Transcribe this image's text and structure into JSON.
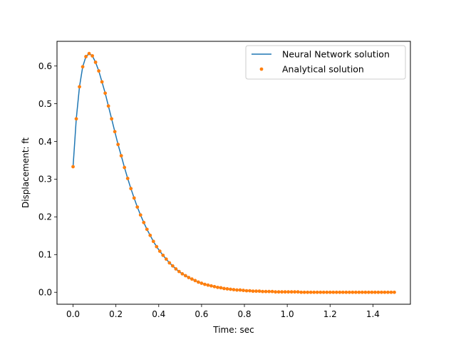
{
  "chart_data": {
    "type": "line",
    "title": "",
    "xlabel": "Time: sec",
    "ylabel": "Displacement: ft",
    "xlim": [
      -0.075,
      1.575
    ],
    "ylim": [
      -0.0317,
      0.6655
    ],
    "xticks": [
      0.0,
      0.2,
      0.4,
      0.6,
      0.8,
      1.0,
      1.2,
      1.4
    ],
    "xtick_labels": [
      "0.0",
      "0.2",
      "0.4",
      "0.6",
      "0.8",
      "1.0",
      "1.2",
      "1.4"
    ],
    "yticks": [
      0.0,
      0.1,
      0.2,
      0.3,
      0.4,
      0.5,
      0.6
    ],
    "ytick_labels": [
      "0.0",
      "0.1",
      "0.2",
      "0.3",
      "0.4",
      "0.5",
      "0.6"
    ],
    "grid": false,
    "legend_position": "top-right",
    "series": [
      {
        "name": "Neural Network solution",
        "style": "line",
        "color": "#1f77b4",
        "x": [
          0.0,
          0.015,
          0.03,
          0.045,
          0.06,
          0.075,
          0.09,
          0.105,
          0.12,
          0.135,
          0.15,
          0.165,
          0.18,
          0.195,
          0.21,
          0.225,
          0.24,
          0.255,
          0.27,
          0.285,
          0.3,
          0.315,
          0.33,
          0.345,
          0.36,
          0.375,
          0.39,
          0.405,
          0.42,
          0.435,
          0.45,
          0.465,
          0.48,
          0.495,
          0.51,
          0.525,
          0.54,
          0.555,
          0.57,
          0.585,
          0.6,
          0.615,
          0.63,
          0.645,
          0.66,
          0.675,
          0.69,
          0.705,
          0.72,
          0.735,
          0.75,
          0.765,
          0.78,
          0.795,
          0.81,
          0.825,
          0.84,
          0.855,
          0.87,
          0.885,
          0.9,
          0.915,
          0.93,
          0.945,
          0.96,
          0.975,
          0.99,
          1.005,
          1.02,
          1.035,
          1.05,
          1.065,
          1.08,
          1.095,
          1.11,
          1.125,
          1.14,
          1.155,
          1.17,
          1.185,
          1.2,
          1.215,
          1.23,
          1.245,
          1.26,
          1.275,
          1.29,
          1.305,
          1.32,
          1.335,
          1.35,
          1.365,
          1.38,
          1.395,
          1.41,
          1.425,
          1.44,
          1.455,
          1.47,
          1.485,
          1.5
        ],
        "y": [
          0.333,
          0.46,
          0.545,
          0.598,
          0.625,
          0.633,
          0.627,
          0.61,
          0.587,
          0.558,
          0.528,
          0.494,
          0.46,
          0.426,
          0.392,
          0.362,
          0.331,
          0.302,
          0.275,
          0.25,
          0.226,
          0.205,
          0.185,
          0.167,
          0.151,
          0.135,
          0.121,
          0.109,
          0.098,
          0.088,
          0.078,
          0.07,
          0.062,
          0.055,
          0.049,
          0.044,
          0.039,
          0.035,
          0.031,
          0.027,
          0.024,
          0.021,
          0.019,
          0.017,
          0.015,
          0.013,
          0.012,
          0.01,
          0.009,
          0.008,
          0.007,
          0.006,
          0.006,
          0.005,
          0.004,
          0.004,
          0.003,
          0.003,
          0.003,
          0.002,
          0.002,
          0.002,
          0.002,
          0.001,
          0.001,
          0.001,
          0.001,
          0.001,
          0.001,
          0.001,
          0.001,
          0.0,
          0.0,
          0.0,
          0.0,
          0.0,
          0.0,
          0.0,
          0.0,
          0.0,
          0.0,
          0.0,
          0.0,
          0.0,
          0.0,
          0.0,
          0.0,
          0.0,
          0.0,
          0.0,
          0.0,
          0.0,
          0.0,
          0.0,
          0.0,
          0.0,
          0.0,
          0.0,
          0.0,
          0.0,
          0.0
        ]
      },
      {
        "name": "Analytical solution",
        "style": "markers",
        "color": "#ff7f0e",
        "x": [
          0.0,
          0.015,
          0.03,
          0.045,
          0.06,
          0.075,
          0.09,
          0.105,
          0.12,
          0.135,
          0.15,
          0.165,
          0.18,
          0.195,
          0.21,
          0.225,
          0.24,
          0.255,
          0.27,
          0.285,
          0.3,
          0.315,
          0.33,
          0.345,
          0.36,
          0.375,
          0.39,
          0.405,
          0.42,
          0.435,
          0.45,
          0.465,
          0.48,
          0.495,
          0.51,
          0.525,
          0.54,
          0.555,
          0.57,
          0.585,
          0.6,
          0.615,
          0.63,
          0.645,
          0.66,
          0.675,
          0.69,
          0.705,
          0.72,
          0.735,
          0.75,
          0.765,
          0.78,
          0.795,
          0.81,
          0.825,
          0.84,
          0.855,
          0.87,
          0.885,
          0.9,
          0.915,
          0.93,
          0.945,
          0.96,
          0.975,
          0.99,
          1.005,
          1.02,
          1.035,
          1.05,
          1.065,
          1.08,
          1.095,
          1.11,
          1.125,
          1.14,
          1.155,
          1.17,
          1.185,
          1.2,
          1.215,
          1.23,
          1.245,
          1.26,
          1.275,
          1.29,
          1.305,
          1.32,
          1.335,
          1.35,
          1.365,
          1.38,
          1.395,
          1.41,
          1.425,
          1.44,
          1.455,
          1.47,
          1.485,
          1.5
        ],
        "y": [
          0.333,
          0.46,
          0.545,
          0.598,
          0.625,
          0.633,
          0.627,
          0.61,
          0.587,
          0.558,
          0.528,
          0.494,
          0.46,
          0.426,
          0.392,
          0.362,
          0.331,
          0.302,
          0.275,
          0.25,
          0.226,
          0.205,
          0.185,
          0.167,
          0.151,
          0.135,
          0.121,
          0.109,
          0.098,
          0.088,
          0.078,
          0.07,
          0.062,
          0.055,
          0.049,
          0.044,
          0.039,
          0.035,
          0.031,
          0.027,
          0.024,
          0.021,
          0.019,
          0.017,
          0.015,
          0.013,
          0.012,
          0.01,
          0.009,
          0.008,
          0.007,
          0.006,
          0.006,
          0.005,
          0.004,
          0.004,
          0.003,
          0.003,
          0.003,
          0.002,
          0.002,
          0.002,
          0.002,
          0.001,
          0.001,
          0.001,
          0.001,
          0.001,
          0.001,
          0.001,
          0.001,
          0.0,
          0.0,
          0.0,
          0.0,
          0.0,
          0.0,
          0.0,
          0.0,
          0.0,
          0.0,
          0.0,
          0.0,
          0.0,
          0.0,
          0.0,
          0.0,
          0.0,
          0.0,
          0.0,
          0.0,
          0.0,
          0.0,
          0.0,
          0.0,
          0.0,
          0.0,
          0.0,
          0.0,
          0.0,
          0.0
        ]
      }
    ]
  }
}
